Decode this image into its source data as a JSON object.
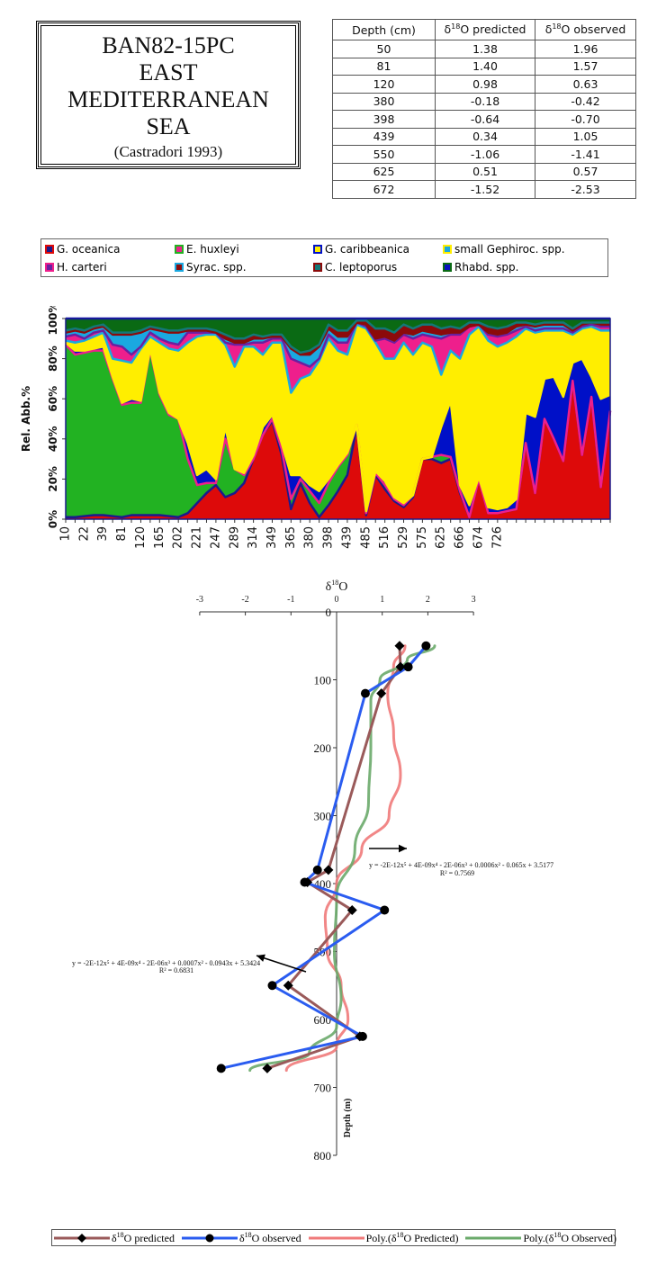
{
  "title_box": {
    "lines": [
      "BAN82-15PC",
      "EAST",
      "MEDITERRANEAN",
      "SEA"
    ],
    "citation": "(Castradori  1993)"
  },
  "table": {
    "headers": [
      "Depth (cm)",
      "δ18O predicted",
      "δ18O observed"
    ],
    "header_parts": [
      {
        "pre": "Depth (cm)",
        "sup": "",
        "post": ""
      },
      {
        "pre": "δ",
        "sup": "18",
        "post": "O predicted"
      },
      {
        "pre": "δ",
        "sup": "18",
        "post": "O observed"
      }
    ],
    "rows": [
      [
        "50",
        "1.38",
        "1.96"
      ],
      [
        "81",
        "1.40",
        "1.57"
      ],
      [
        "120",
        "0.98",
        "0.63"
      ],
      [
        "380",
        "-0.18",
        "-0.42"
      ],
      [
        "398",
        "-0.64",
        "-0.70"
      ],
      [
        "439",
        "0.34",
        "1.05"
      ],
      [
        "550",
        "-1.06",
        "-1.41"
      ],
      [
        "625",
        "0.51",
        "0.57"
      ],
      [
        "672",
        "-1.52",
        "-2.53"
      ]
    ]
  },
  "chart_data": [
    {
      "type": "area",
      "stacked": true,
      "title": "",
      "xlabel": "",
      "ylabel": "Rel. Abb.%",
      "ylim": [
        0,
        100
      ],
      "yticks": [
        "0%",
        "20%",
        "40%",
        "60%",
        "80%",
        "100%"
      ],
      "xtick_labels": [
        "10",
        "22",
        "39",
        "81",
        "120",
        "165",
        "202",
        "221",
        "247",
        "289",
        "314",
        "349",
        "365",
        "380",
        "398",
        "439",
        "485",
        "516",
        "529",
        "575",
        "625",
        "666",
        "674",
        "726"
      ],
      "legend_position": "top",
      "legend": [
        {
          "name": "G. oceanica",
          "fill": "#dd0a0a",
          "line": "#1a1a8c"
        },
        {
          "name": "E. huxleyi",
          "fill": "#22b222",
          "line": "#ee1f8c"
        },
        {
          "name": "G. caribbeanica",
          "fill": "#0010c8",
          "line": "#ffee00"
        },
        {
          "name": "small Gephiroc. spp.",
          "fill": "#ffee00",
          "line": "#1aa8e0"
        },
        {
          "name": "H. carteri",
          "fill": "#ee1f8c",
          "line": "#6a1fa0"
        },
        {
          "name": "Syrac. spp.",
          "fill": "#1aa8e0",
          "line": "#8c0a0a"
        },
        {
          "name": "C. leptoporus",
          "fill": "#8c0a0a",
          "line": "#137878"
        },
        {
          "name": "Rhabd. spp.",
          "fill": "#0a6a14",
          "line": "#0a10c0"
        }
      ],
      "series_cumulative_top_percent": {
        "G. oceanica": [
          1,
          1,
          1.5,
          2,
          2,
          1.5,
          1,
          2,
          2,
          2,
          2,
          1.5,
          1,
          3,
          8,
          13,
          17,
          11,
          13,
          18,
          30,
          42,
          49,
          32,
          5,
          18,
          8,
          1,
          7,
          14,
          22,
          46,
          2,
          22,
          15,
          9,
          6,
          11,
          30,
          30,
          28,
          30,
          13,
          1,
          20,
          3,
          3,
          4,
          5,
          38,
          13,
          50,
          40,
          29,
          69,
          32,
          61,
          16,
          54
        ],
        "E. huxleyi": [
          87,
          82,
          83,
          84,
          84,
          70,
          57,
          58,
          58,
          84,
          62,
          52,
          50,
          30,
          17,
          18,
          18,
          40,
          25,
          22,
          30,
          42,
          50,
          35,
          10,
          20,
          14,
          8,
          18,
          26,
          32,
          47,
          3,
          23,
          17,
          10,
          7,
          12,
          30,
          31,
          32,
          31,
          14,
          1,
          20,
          3,
          3,
          4,
          5,
          38,
          13,
          50,
          40,
          29,
          69,
          32,
          61,
          16,
          54
        ],
        "G. caribbeanica": [
          88,
          84,
          84,
          85,
          86,
          71,
          58,
          60,
          59,
          85,
          63,
          53,
          50,
          38,
          22,
          25,
          20,
          46,
          25,
          23,
          32,
          46,
          52,
          38,
          22,
          22,
          17,
          14,
          20,
          27,
          33,
          47,
          4,
          24,
          19,
          11,
          8,
          12,
          30,
          31,
          46,
          59,
          17,
          7,
          21,
          6,
          5,
          6,
          10,
          53,
          51,
          70,
          71,
          61,
          78,
          80,
          71,
          60,
          62
        ],
        "small Gephiroc. spp.": [
          89,
          88,
          89,
          91,
          93,
          80,
          79,
          78,
          85,
          91,
          88,
          85,
          84,
          88,
          91,
          92,
          92,
          87,
          76,
          86,
          86,
          82,
          88,
          88,
          63,
          70,
          72,
          79,
          90,
          84,
          82,
          97,
          95,
          88,
          80,
          80,
          88,
          82,
          88,
          86,
          72,
          84,
          80,
          92,
          96,
          89,
          86,
          88,
          91,
          95,
          93,
          94,
          94,
          94,
          92,
          95,
          96,
          94,
          94
        ],
        "H. carteri": [
          91,
          92,
          90,
          93,
          94,
          87,
          86,
          82,
          86,
          93,
          90,
          88,
          87,
          93,
          93,
          93,
          93,
          88,
          87,
          87,
          88,
          88,
          90,
          90,
          80,
          78,
          76,
          80,
          92,
          88,
          88,
          98,
          96,
          89,
          90,
          88,
          92,
          90,
          92,
          91,
          90,
          92,
          92,
          96,
          97,
          92,
          91,
          92,
          94,
          96,
          94,
          95,
          95,
          95,
          93,
          96,
          97,
          96,
          96
        ],
        "Syrac. spp.": [
          93,
          94,
          93,
          95,
          96,
          92,
          92,
          92,
          93,
          95,
          94,
          93,
          93,
          94,
          94,
          94,
          93,
          90,
          88,
          88,
          90,
          90,
          91,
          91,
          85,
          82,
          82,
          86,
          95,
          91,
          91,
          98,
          97,
          90,
          91,
          89,
          93,
          92,
          94,
          93,
          92,
          93,
          93,
          96,
          97,
          93,
          92,
          93,
          96,
          97,
          96,
          97,
          97,
          97,
          94,
          97,
          98,
          97,
          97
        ],
        "C. leptoporus": [
          94,
          95,
          94,
          96,
          97,
          93,
          93,
          93,
          94,
          96,
          95,
          94,
          94,
          95,
          95,
          95,
          94,
          92,
          90,
          90,
          92,
          91,
          92,
          92,
          86,
          83,
          84,
          87,
          97,
          94,
          94,
          99,
          99,
          95,
          95,
          93,
          97,
          95,
          97,
          97,
          95,
          96,
          95,
          98,
          98,
          96,
          95,
          96,
          98,
          98,
          97,
          98,
          98,
          98,
          95,
          98,
          98,
          98,
          98
        ],
        "Rhabd. spp.": [
          100,
          100,
          100,
          100,
          100,
          100,
          100,
          100,
          100,
          100,
          100,
          100,
          100,
          100,
          100,
          100,
          100,
          100,
          100,
          100,
          100,
          100,
          100,
          100,
          100,
          100,
          100,
          100,
          100,
          100,
          100,
          100,
          100,
          100,
          100,
          100,
          100,
          100,
          100,
          100,
          100,
          100,
          100,
          100,
          100,
          100,
          100,
          100,
          100,
          100,
          100,
          100,
          100,
          100,
          100,
          100,
          100,
          100,
          100
        ]
      },
      "notes": "59 samples, tick labels every second sample from 10 to 726 cm; cumulative percentages estimated from gridlines"
    },
    {
      "type": "line",
      "title": "δ18O",
      "title_parts": {
        "pre": "δ",
        "sup": "18",
        "post": "O"
      },
      "xlabel": "δ18O",
      "ylabel": "Depth (m)",
      "xlim": [
        -3,
        3
      ],
      "ylim": [
        0,
        800
      ],
      "y_inverted": true,
      "xticks": [
        "-3",
        "-2",
        "-1",
        "0",
        "1",
        "2",
        "3"
      ],
      "yticks": [
        "0",
        "100",
        "200",
        "300",
        "400",
        "500",
        "600",
        "700",
        "800"
      ],
      "series": [
        {
          "name": "δ18O predicted",
          "color": "#9a5a5a",
          "marker": "diamond",
          "points": [
            [
              1.38,
              50
            ],
            [
              1.4,
              81
            ],
            [
              0.98,
              120
            ],
            [
              -0.18,
              380
            ],
            [
              -0.64,
              398
            ],
            [
              0.34,
              439
            ],
            [
              -1.06,
              550
            ],
            [
              0.51,
              625
            ],
            [
              -1.52,
              672
            ]
          ]
        },
        {
          "name": "δ18O observed",
          "color": "#2a5cf0",
          "marker": "circle",
          "points": [
            [
              1.96,
              50
            ],
            [
              1.57,
              81
            ],
            [
              0.63,
              120
            ],
            [
              -0.42,
              380
            ],
            [
              -0.7,
              398
            ],
            [
              1.05,
              439
            ],
            [
              -1.41,
              550
            ],
            [
              0.57,
              625
            ],
            [
              -2.53,
              672
            ]
          ]
        },
        {
          "name": "Poly.(δ18O Predicted)",
          "color": "#f07a7a",
          "marker": "none",
          "kind": "polynomial-trend",
          "points": [
            [
              1.5,
              50
            ],
            [
              1.25,
              80
            ],
            [
              1.12,
              120
            ],
            [
              1.25,
              180
            ],
            [
              1.4,
              240
            ],
            [
              1.15,
              300
            ],
            [
              0.55,
              350
            ],
            [
              0.0,
              400
            ],
            [
              -0.25,
              450
            ],
            [
              -0.2,
              500
            ],
            [
              0.1,
              550
            ],
            [
              0.25,
              600
            ],
            [
              0.0,
              640
            ],
            [
              -1.1,
              675
            ]
          ]
        },
        {
          "name": "Poly.(δ18O Observed)",
          "color": "#6aaa6a",
          "marker": "none",
          "kind": "polynomial-trend",
          "points": [
            [
              2.15,
              50
            ],
            [
              1.55,
              70
            ],
            [
              0.95,
              100
            ],
            [
              0.75,
              130
            ],
            [
              0.75,
              200
            ],
            [
              0.7,
              280
            ],
            [
              0.4,
              350
            ],
            [
              0.0,
              420
            ],
            [
              -0.05,
              500
            ],
            [
              0.1,
              570
            ],
            [
              0.0,
              610
            ],
            [
              -0.6,
              650
            ],
            [
              -1.9,
              675
            ]
          ]
        }
      ],
      "annotations": [
        {
          "text": "y = -2E-12x⁵ + 4E-09x⁴ - 2E-06x³ + 0.0006x² - 0.065x + 3.5177",
          "r2": "R² = 0.7569",
          "arrow": "right"
        },
        {
          "text": "y = -2E-12x⁵ + 4E-09x⁴ - 2E-06x³ + 0.0007x² - 0.0943x + 5.3424",
          "r2": "R² = 0.6831",
          "arrow": "left"
        }
      ],
      "legend_position": "bottom",
      "legend": [
        {
          "pre": "δ",
          "sup": "18",
          "post": "O predicted"
        },
        {
          "pre": "δ",
          "sup": "18",
          "post": "O observed"
        },
        {
          "pre": "Poly.(δ",
          "sup": "18",
          "post": "O Predicted)"
        },
        {
          "pre": "Poly.(δ",
          "sup": "18",
          "post": "O Observed)"
        }
      ]
    }
  ]
}
